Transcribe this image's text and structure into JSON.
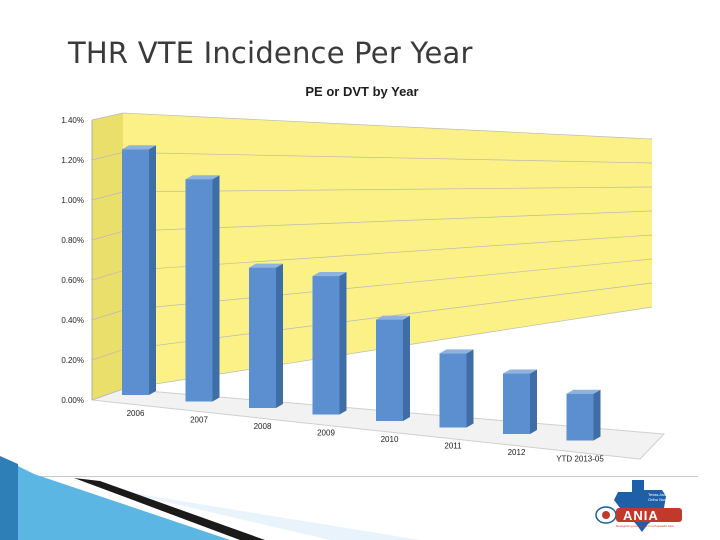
{
  "slide": {
    "title": "THR VTE Incidence Per Year"
  },
  "chart_data": {
    "type": "bar",
    "title": "PE or DVT by Year",
    "categories": [
      "2006",
      "2007",
      "2008",
      "2009",
      "2010",
      "2011",
      "2012",
      "YTD 2013-05"
    ],
    "values": [
      1.26,
      1.14,
      0.72,
      0.71,
      0.52,
      0.38,
      0.31,
      0.24
    ],
    "ylim": [
      0,
      1.4
    ],
    "yticks": [
      "0.00%",
      "0.20%",
      "0.40%",
      "0.60%",
      "0.80%",
      "1.00%",
      "1.20%",
      "1.40%"
    ],
    "xlabel": "",
    "ylabel": "",
    "grid": true,
    "colors": {
      "bar_front": "#5b8fd0",
      "bar_side": "#3f6ea6",
      "bar_top": "#8fb3e0",
      "back_wall": "#fbf186",
      "side_wall": "#eadf6a",
      "floor": "#f2f2f2"
    }
  },
  "logo": {
    "brand": "ANIA",
    "line1": "Texas Assoc. of",
    "line2": "Ortho Nurses",
    "tagline": "Recognizing excellence in orthopaedic care"
  }
}
